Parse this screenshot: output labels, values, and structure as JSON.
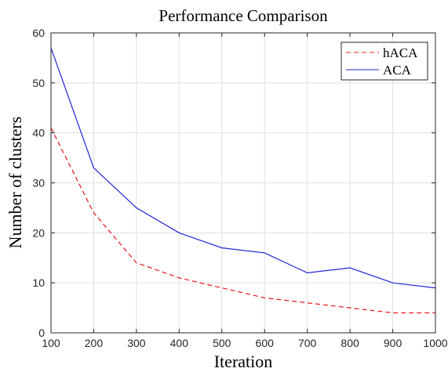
{
  "chart_data": {
    "type": "line",
    "title": "Performance Comparison",
    "xlabel": "Iteration",
    "ylabel": "Number of clusters",
    "xlim": [
      100,
      1000
    ],
    "ylim": [
      0,
      60
    ],
    "x_ticks": [
      100,
      200,
      300,
      400,
      500,
      600,
      700,
      800,
      900,
      1000
    ],
    "y_ticks": [
      0,
      10,
      20,
      30,
      40,
      50,
      60
    ],
    "grid": true,
    "legend_position": "top-right",
    "x": [
      100,
      200,
      300,
      400,
      500,
      600,
      700,
      800,
      900,
      1000
    ],
    "series": [
      {
        "name": "hACA",
        "color": "#e8141b",
        "line_style": "dashed",
        "values": [
          41,
          24,
          14,
          11,
          9,
          7,
          6,
          5,
          4,
          4
        ]
      },
      {
        "name": "ACA",
        "color": "#1f24d6",
        "line_style": "solid",
        "values": [
          57,
          33,
          25,
          20,
          17,
          16,
          12,
          13,
          10,
          9
        ]
      }
    ]
  }
}
